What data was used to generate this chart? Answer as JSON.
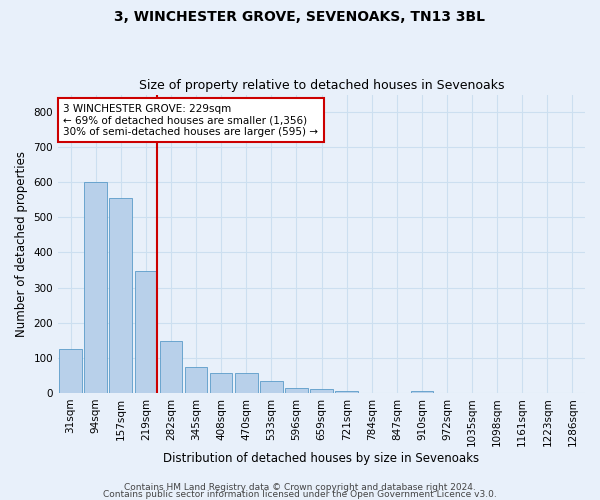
{
  "title": "3, WINCHESTER GROVE, SEVENOAKS, TN13 3BL",
  "subtitle": "Size of property relative to detached houses in Sevenoaks",
  "xlabel": "Distribution of detached houses by size in Sevenoaks",
  "ylabel": "Number of detached properties",
  "bin_labels": [
    "31sqm",
    "94sqm",
    "157sqm",
    "219sqm",
    "282sqm",
    "345sqm",
    "408sqm",
    "470sqm",
    "533sqm",
    "596sqm",
    "659sqm",
    "721sqm",
    "784sqm",
    "847sqm",
    "910sqm",
    "972sqm",
    "1035sqm",
    "1098sqm",
    "1161sqm",
    "1223sqm",
    "1286sqm"
  ],
  "bar_values": [
    125,
    600,
    555,
    347,
    148,
    75,
    57,
    57,
    33,
    13,
    12,
    5,
    0,
    0,
    5,
    0,
    0,
    0,
    0,
    0,
    0
  ],
  "bar_color": "#b8d0ea",
  "bar_edge_color": "#5a9bc9",
  "grid_color": "#ccdff0",
  "background_color": "#e8f0fa",
  "vline_color": "#cc0000",
  "annotation_text": "3 WINCHESTER GROVE: 229sqm\n← 69% of detached houses are smaller (1,356)\n30% of semi-detached houses are larger (595) →",
  "annotation_box_color": "#ffffff",
  "annotation_box_edge": "#cc0000",
  "ylim": [
    0,
    850
  ],
  "yticks": [
    0,
    100,
    200,
    300,
    400,
    500,
    600,
    700,
    800
  ],
  "footer_line1": "Contains HM Land Registry data © Crown copyright and database right 2024.",
  "footer_line2": "Contains public sector information licensed under the Open Government Licence v3.0.",
  "title_fontsize": 10,
  "subtitle_fontsize": 9,
  "axis_label_fontsize": 8.5,
  "tick_fontsize": 7.5,
  "annotation_fontsize": 7.5,
  "footer_fontsize": 6.5
}
